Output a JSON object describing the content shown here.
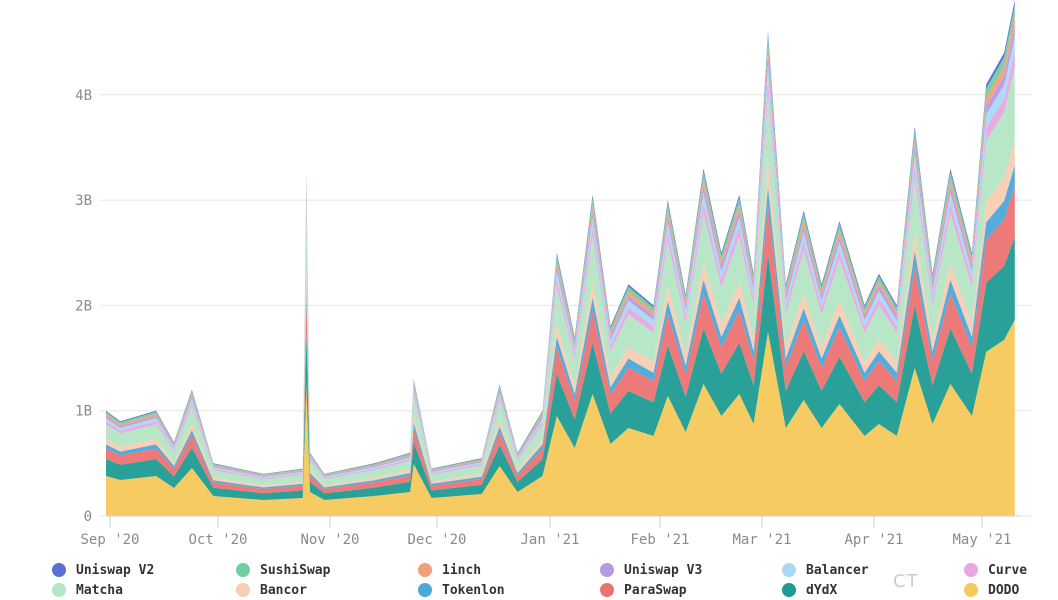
{
  "chart_data": {
    "type": "area",
    "stacked": true,
    "y_ticks": [
      "0",
      "1B",
      "2B",
      "3B",
      "4B"
    ],
    "ylim": [
      0,
      4900000000
    ],
    "x_tick_labels": [
      "Sep '20",
      "Oct '20",
      "Nov '20",
      "Dec '20",
      "Jan '21",
      "Feb '21",
      "Mar '21",
      "Apr '21",
      "May '21"
    ],
    "x_range": [
      "2020-09-01",
      "2021-05-15"
    ],
    "grid": true,
    "legend_position": "bottom",
    "series": [
      {
        "name": "Uniswap V2",
        "color": "#5b6fd6"
      },
      {
        "name": "SushiSwap",
        "color": "#6fcf9f"
      },
      {
        "name": "1inch",
        "color": "#f2a07b"
      },
      {
        "name": "Uniswap V3",
        "color": "#b79ae0"
      },
      {
        "name": "Balancer",
        "color": "#a9d9f5"
      },
      {
        "name": "Curve",
        "color": "#e8a7e3"
      },
      {
        "name": "Matcha",
        "color": "#b3e6c4"
      },
      {
        "name": "Bancor",
        "color": "#f7cdb3"
      },
      {
        "name": "Tokenlon",
        "color": "#4aa8da"
      },
      {
        "name": "ParaSwap",
        "color": "#ec7272"
      },
      {
        "name": "dYdX",
        "color": "#1e9c94"
      },
      {
        "name": "DODO",
        "color": "#f5c95a"
      }
    ],
    "totals_sample": {
      "dates": [
        "2020-09-01",
        "2020-09-05",
        "2020-09-15",
        "2020-09-20",
        "2020-09-25",
        "2020-10-01",
        "2020-10-15",
        "2020-10-26",
        "2020-10-27",
        "2020-10-28",
        "2020-11-01",
        "2020-11-15",
        "2020-11-25",
        "2020-11-26",
        "2020-12-01",
        "2020-12-15",
        "2020-12-20",
        "2020-12-25",
        "2021-01-01",
        "2021-01-05",
        "2021-01-10",
        "2021-01-15",
        "2021-01-20",
        "2021-01-25",
        "2021-02-01",
        "2021-02-05",
        "2021-02-10",
        "2021-02-15",
        "2021-02-20",
        "2021-02-25",
        "2021-03-01",
        "2021-03-05",
        "2021-03-10",
        "2021-03-15",
        "2021-03-20",
        "2021-03-25",
        "2021-04-01",
        "2021-04-05",
        "2021-04-10",
        "2021-04-15",
        "2021-04-20",
        "2021-04-25",
        "2021-05-01",
        "2021-05-05",
        "2021-05-10",
        "2021-05-13"
      ],
      "values": [
        1000000000,
        900000000,
        1000000000,
        700000000,
        1200000000,
        500000000,
        400000000,
        450000000,
        3250000000,
        600000000,
        400000000,
        500000000,
        600000000,
        1300000000,
        450000000,
        550000000,
        1250000000,
        600000000,
        1000000000,
        2500000000,
        1700000000,
        3050000000,
        1800000000,
        2200000000,
        2000000000,
        3000000000,
        2100000000,
        3300000000,
        2500000000,
        3050000000,
        2300000000,
        4600000000,
        2200000000,
        2900000000,
        2200000000,
        2800000000,
        2000000000,
        2300000000,
        2000000000,
        3700000000,
        2300000000,
        3300000000,
        2500000000,
        4100000000,
        4400000000,
        4900000000
      ]
    },
    "layer_shares": [
      0.38,
      0.16,
      0.1,
      0.04,
      0.05,
      0.14,
      0.03,
      0.03,
      0.02,
      0.02,
      0.02,
      0.01
    ]
  },
  "watermark": {
    "text": "CT"
  }
}
